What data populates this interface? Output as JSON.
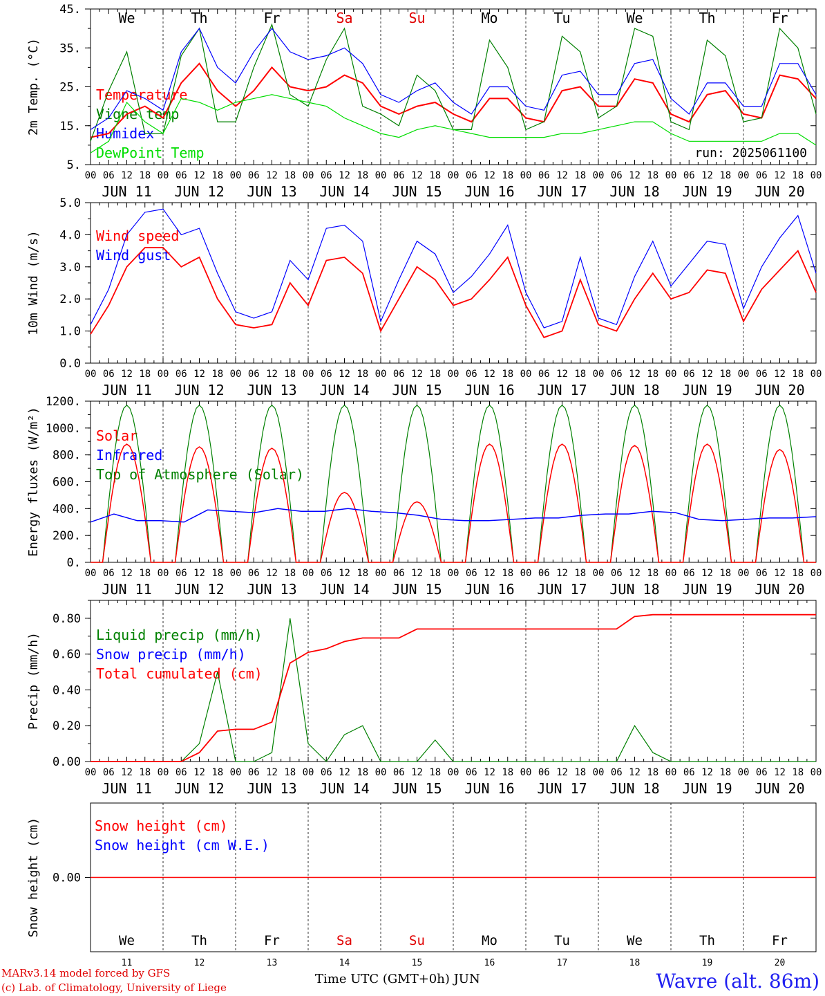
{
  "days": [
    "JUN 11",
    "JUN 12",
    "JUN 13",
    "JUN 14",
    "JUN 15",
    "JUN 16",
    "JUN 17",
    "JUN 18",
    "JUN 19",
    "JUN 20"
  ],
  "hour_ticks": [
    "00",
    "06",
    "12",
    "18"
  ],
  "last_hour_tick": "00",
  "weekdays": [
    {
      "label": "We",
      "color": "#000000"
    },
    {
      "label": "Th",
      "color": "#000000"
    },
    {
      "label": "Fr",
      "color": "#000000"
    },
    {
      "label": "Sa",
      "color": "#e00000"
    },
    {
      "label": "Su",
      "color": "#e00000"
    },
    {
      "label": "Mo",
      "color": "#000000"
    },
    {
      "label": "Tu",
      "color": "#000000"
    },
    {
      "label": "We",
      "color": "#000000"
    },
    {
      "label": "Th",
      "color": "#000000"
    },
    {
      "label": "Fr",
      "color": "#000000"
    }
  ],
  "day_numbers": [
    "11",
    "12",
    "13",
    "14",
    "15",
    "16",
    "17",
    "18",
    "19",
    "20"
  ],
  "footer": {
    "line1": "MARv3.14 model forced by GFS",
    "line2": "(c) Lab. of Climatology, University of Liege",
    "axis_title": "Time UTC (GMT+0h) JUN",
    "station": "Wavre (alt. 86m)"
  },
  "chart_data": [
    {
      "type": "line",
      "ylabel": "2m Temp. (°C)",
      "ylim": [
        5,
        45
      ],
      "yticks": [
        5,
        15,
        25,
        35,
        45
      ],
      "ytick_labels": [
        "5.",
        "15.",
        "25.",
        "35.",
        "45."
      ],
      "annotation": "run: 2025061100",
      "x_hours": [
        0,
        6,
        12,
        18,
        24,
        30,
        36,
        42,
        48,
        54,
        60,
        66,
        72,
        78,
        84,
        90,
        96,
        102,
        108,
        114,
        120,
        126,
        132,
        138,
        144,
        150,
        156,
        162,
        168,
        174,
        180,
        186,
        192,
        198,
        204,
        210,
        216,
        222,
        228,
        234,
        240
      ],
      "series": [
        {
          "name": "Temperature",
          "color": "#ff0000",
          "values": [
            12,
            13,
            18,
            20,
            17,
            26,
            31,
            24,
            20,
            24,
            30,
            25,
            24,
            25,
            28,
            26,
            20,
            18,
            20,
            21,
            18,
            16,
            22,
            22,
            17,
            16,
            24,
            25,
            20,
            20,
            27,
            26,
            18,
            16,
            23,
            24,
            18,
            17,
            28,
            27,
            22
          ]
        },
        {
          "name": "Vigne temp",
          "color": "#008000",
          "values": [
            11,
            24,
            34,
            13,
            13,
            33,
            40,
            16,
            16,
            30,
            41,
            23,
            20,
            32,
            40,
            20,
            18,
            15,
            28,
            24,
            14,
            14,
            37,
            30,
            14,
            16,
            38,
            34,
            17,
            20,
            40,
            38,
            16,
            14,
            37,
            33,
            16,
            17,
            40,
            35,
            18
          ]
        },
        {
          "name": "Humidex",
          "color": "#0000ff",
          "values": [
            14,
            17,
            24,
            22,
            19,
            34,
            40,
            30,
            26,
            34,
            40,
            34,
            32,
            33,
            35,
            31,
            23,
            21,
            24,
            26,
            21,
            18,
            25,
            25,
            20,
            19,
            28,
            29,
            23,
            23,
            31,
            32,
            22,
            18,
            26,
            26,
            20,
            20,
            31,
            31,
            23
          ]
        },
        {
          "name": "DewPoint Temp",
          "color": "#00dd00",
          "values": [
            8,
            11,
            21,
            16,
            13,
            22,
            21,
            19,
            21,
            22,
            23,
            22,
            21,
            20,
            17,
            15,
            13,
            12,
            14,
            15,
            14,
            13,
            12,
            12,
            12,
            12,
            13,
            13,
            14,
            15,
            16,
            16,
            13,
            11,
            11,
            11,
            11,
            11,
            13,
            13,
            10
          ]
        }
      ]
    },
    {
      "type": "line",
      "ylabel": "10m Wind (m/s)",
      "ylim": [
        0,
        5
      ],
      "yticks": [
        0,
        1,
        2,
        3,
        4,
        5
      ],
      "ytick_labels": [
        "0.0",
        "1.0",
        "2.0",
        "3.0",
        "4.0",
        "5.0"
      ],
      "x_hours": [
        0,
        6,
        12,
        18,
        24,
        30,
        36,
        42,
        48,
        54,
        60,
        66,
        72,
        78,
        84,
        90,
        96,
        102,
        108,
        114,
        120,
        126,
        132,
        138,
        144,
        150,
        156,
        162,
        168,
        174,
        180,
        186,
        192,
        198,
        204,
        210,
        216,
        222,
        228,
        234,
        240
      ],
      "series": [
        {
          "name": "Wind speed",
          "color": "#ff0000",
          "values": [
            0.9,
            1.8,
            3.0,
            3.6,
            3.6,
            3.0,
            3.3,
            2.0,
            1.2,
            1.1,
            1.2,
            2.5,
            1.8,
            3.2,
            3.3,
            2.8,
            1.0,
            2.0,
            3.0,
            2.6,
            1.8,
            2.0,
            2.6,
            3.3,
            1.8,
            0.8,
            1.0,
            2.6,
            1.2,
            1.0,
            2.0,
            2.8,
            2.0,
            2.2,
            2.9,
            2.8,
            1.3,
            2.3,
            2.9,
            3.5,
            2.2
          ]
        },
        {
          "name": "Wind gust",
          "color": "#0000ff",
          "values": [
            1.2,
            2.3,
            4.0,
            4.7,
            4.8,
            4.0,
            4.2,
            2.8,
            1.6,
            1.4,
            1.6,
            3.2,
            2.6,
            4.2,
            4.3,
            3.8,
            1.3,
            2.6,
            3.8,
            3.4,
            2.2,
            2.7,
            3.4,
            4.3,
            2.2,
            1.1,
            1.3,
            3.3,
            1.4,
            1.2,
            2.7,
            3.8,
            2.4,
            3.1,
            3.8,
            3.7,
            1.7,
            3.0,
            3.9,
            4.6,
            2.8
          ]
        }
      ]
    },
    {
      "type": "line",
      "ylabel": "Energy fluxes (W/m²)",
      "ylim": [
        0,
        1200
      ],
      "yticks": [
        0,
        200,
        400,
        600,
        800,
        1000,
        1200
      ],
      "ytick_labels": [
        "0.",
        "200.",
        "400.",
        "600.",
        "800.",
        "1000.",
        "1200."
      ],
      "solar_peaks": [
        880,
        860,
        850,
        520,
        450,
        880,
        880,
        870,
        880,
        840
      ],
      "toa_peak": 1170,
      "infrared_values": [
        300,
        360,
        310,
        310,
        300,
        390,
        380,
        370,
        400,
        380,
        380,
        400,
        380,
        370,
        350,
        320,
        310,
        310,
        320,
        330,
        330,
        350,
        360,
        360,
        380,
        370,
        320,
        310,
        320,
        330,
        330,
        340
      ],
      "series": [
        {
          "name": "Solar",
          "color": "#ff0000"
        },
        {
          "name": "Infrared",
          "color": "#0000ff"
        },
        {
          "name": "Top of Atmosphere (Solar)",
          "color": "#008000"
        }
      ]
    },
    {
      "type": "line",
      "ylabel": "Precip (mm/h)",
      "ylim": [
        0,
        0.9
      ],
      "yticks": [
        0,
        0.2,
        0.4,
        0.6,
        0.8
      ],
      "ytick_labels": [
        "0.00",
        "0.20",
        "0.40",
        "0.60",
        "0.80"
      ],
      "x_hours": [
        0,
        6,
        12,
        18,
        24,
        30,
        36,
        42,
        48,
        54,
        60,
        66,
        72,
        78,
        84,
        90,
        96,
        102,
        108,
        114,
        120,
        126,
        132,
        138,
        144,
        150,
        156,
        162,
        168,
        174,
        180,
        186,
        192,
        198,
        204,
        210,
        216,
        222,
        228,
        234,
        240
      ],
      "series": [
        {
          "name": "Liquid precip (mm/h)",
          "color": "#008000",
          "values": [
            0,
            0,
            0,
            0,
            0,
            0,
            0.1,
            0.5,
            0,
            0,
            0.05,
            0.8,
            0.1,
            0,
            0.15,
            0.2,
            0,
            0,
            0,
            0.12,
            0,
            0,
            0,
            0,
            0,
            0,
            0,
            0,
            0,
            0,
            0.2,
            0.05,
            0,
            0,
            0,
            0,
            0,
            0,
            0,
            0,
            0
          ]
        },
        {
          "name": "Snow precip (mm/h)",
          "color": "#0000ff",
          "values": []
        },
        {
          "name": "Total cumulated (cm)",
          "color": "#ff0000",
          "values": [
            0,
            0,
            0,
            0,
            0,
            0,
            0.05,
            0.17,
            0.18,
            0.18,
            0.22,
            0.55,
            0.61,
            0.63,
            0.67,
            0.69,
            0.69,
            0.69,
            0.74,
            0.74,
            0.74,
            0.74,
            0.74,
            0.74,
            0.74,
            0.74,
            0.74,
            0.74,
            0.74,
            0.74,
            0.81,
            0.82,
            0.82,
            0.82,
            0.82,
            0.82,
            0.82,
            0.82,
            0.82,
            0.82,
            0.82
          ]
        }
      ]
    },
    {
      "type": "line",
      "ylabel": "Snow height (cm)",
      "ylim": [
        -1,
        1
      ],
      "yticks": [
        0
      ],
      "ytick_labels": [
        "0.00"
      ],
      "series": [
        {
          "name": "Snow height (cm)",
          "color": "#ff0000",
          "values": [
            0,
            0
          ]
        },
        {
          "name": "Snow height (cm W.E.)",
          "color": "#0000ff",
          "values": []
        }
      ]
    }
  ]
}
